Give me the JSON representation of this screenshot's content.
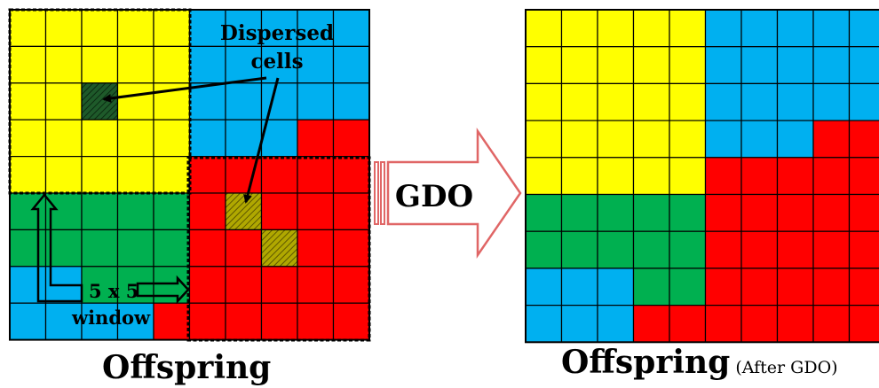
{
  "colors": {
    "yellow": "#FFFF00",
    "blue": "#00B0F0",
    "red": "#FF0000",
    "green": "#00B050",
    "dark_green": "#1E5A2A",
    "olive": "#A7A100",
    "arrow_outline": "#E06666"
  },
  "left_grid": {
    "rows": 9,
    "cols": 10,
    "cells": [
      [
        "Y",
        "Y",
        "Y",
        "Y",
        "Y",
        "B",
        "B",
        "B",
        "B",
        "B"
      ],
      [
        "Y",
        "Y",
        "Y",
        "Y",
        "Y",
        "B",
        "B",
        "B",
        "B",
        "B"
      ],
      [
        "Y",
        "Y",
        "G*",
        "Y",
        "Y",
        "B",
        "B",
        "B",
        "B",
        "B"
      ],
      [
        "Y",
        "Y",
        "Y",
        "Y",
        "Y",
        "B",
        "B",
        "B",
        "R",
        "R"
      ],
      [
        "Y",
        "Y",
        "Y",
        "Y",
        "Y",
        "R",
        "R",
        "R",
        "R",
        "R"
      ],
      [
        "G",
        "G",
        "G",
        "G",
        "G",
        "R",
        "Y*",
        "R",
        "R",
        "R"
      ],
      [
        "G",
        "G",
        "G",
        "G",
        "G",
        "R",
        "R",
        "Y*",
        "R",
        "R"
      ],
      [
        "B",
        "B",
        "G",
        "G",
        "G",
        "R",
        "R",
        "R",
        "R",
        "R"
      ],
      [
        "B",
        "B",
        "B",
        "B",
        "R",
        "R",
        "R",
        "R",
        "R",
        "R"
      ]
    ]
  },
  "right_grid": {
    "rows": 9,
    "cols": 10,
    "cells": [
      [
        "Y",
        "Y",
        "Y",
        "Y",
        "Y",
        "B",
        "B",
        "B",
        "B",
        "B"
      ],
      [
        "Y",
        "Y",
        "Y",
        "Y",
        "Y",
        "B",
        "B",
        "B",
        "B",
        "B"
      ],
      [
        "Y",
        "Y",
        "Y",
        "Y",
        "Y",
        "B",
        "B",
        "B",
        "B",
        "B"
      ],
      [
        "Y",
        "Y",
        "Y",
        "Y",
        "Y",
        "B",
        "B",
        "B",
        "R",
        "R"
      ],
      [
        "Y",
        "Y",
        "Y",
        "Y",
        "Y",
        "R",
        "R",
        "R",
        "R",
        "R"
      ],
      [
        "G",
        "G",
        "G",
        "G",
        "G",
        "R",
        "R",
        "R",
        "R",
        "R"
      ],
      [
        "G",
        "G",
        "G",
        "G",
        "G",
        "R",
        "R",
        "R",
        "R",
        "R"
      ],
      [
        "B",
        "B",
        "B",
        "G",
        "G",
        "R",
        "R",
        "R",
        "R",
        "R"
      ],
      [
        "B",
        "B",
        "B",
        "R",
        "R",
        "R",
        "R",
        "R",
        "R",
        "R"
      ]
    ]
  },
  "labels": {
    "dispersed_line1": "Dispersed",
    "dispersed_line2": "cells",
    "window_line1": "5 x 5",
    "window_line2": "window",
    "operator": "GDO",
    "caption_left": "Offspring",
    "caption_right": "Offspring",
    "caption_right_sub": "(After GDO)"
  }
}
